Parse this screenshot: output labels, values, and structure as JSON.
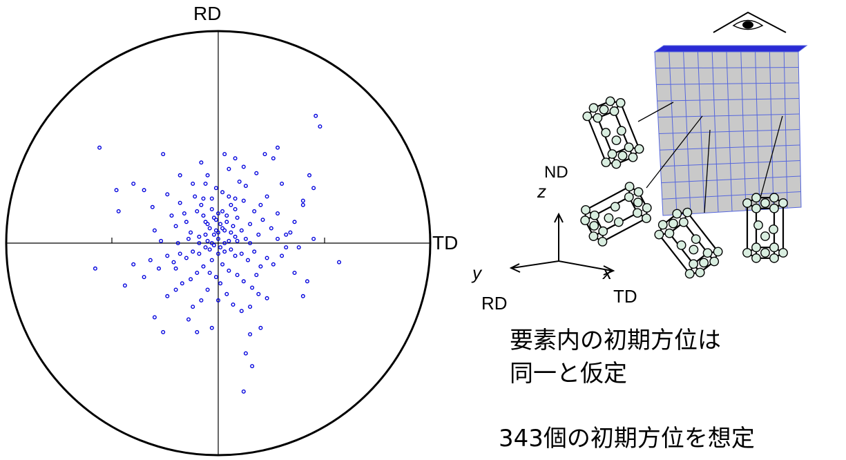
{
  "pole_figure": {
    "top_label": "RD",
    "right_label": "TD",
    "pole_color": "#0000dd",
    "poles": [
      [
        -0.35,
        0.25
      ],
      [
        -0.47,
        0.15
      ],
      [
        -0.31,
        0.17
      ],
      [
        -0.3,
        0.06
      ],
      [
        -0.22,
        0.13
      ],
      [
        -0.2,
        0.08
      ],
      [
        -0.18,
        0.19
      ],
      [
        -0.15,
        0.1
      ],
      [
        -0.13,
        0.05
      ],
      [
        -0.1,
        0.15
      ],
      [
        -0.09,
        0.03
      ],
      [
        -0.07,
        0.21
      ],
      [
        -0.06,
        0.1
      ],
      [
        -0.05,
        0.01
      ],
      [
        -0.04,
        0.07
      ],
      [
        -0.03,
        0.16
      ],
      [
        -0.02,
        0.04
      ],
      [
        -0.01,
        0.11
      ],
      [
        0.0,
        0.02
      ],
      [
        0.01,
        0.09
      ],
      [
        0.02,
        0.24
      ],
      [
        0.03,
        0.06
      ],
      [
        0.04,
        0.13
      ],
      [
        0.05,
        0.01
      ],
      [
        0.06,
        0.18
      ],
      [
        0.07,
        0.08
      ],
      [
        0.08,
        0.03
      ],
      [
        0.09,
        0.12
      ],
      [
        0.1,
        0.29
      ],
      [
        0.11,
        0.06
      ],
      [
        0.12,
        0.2
      ],
      [
        0.13,
        0.02
      ],
      [
        0.15,
        0.09
      ],
      [
        0.17,
        0.15
      ],
      [
        0.19,
        0.04
      ],
      [
        0.21,
        0.11
      ],
      [
        0.23,
        0.22
      ],
      [
        0.25,
        0.07
      ],
      [
        0.28,
        0.14
      ],
      [
        0.32,
        0.04
      ],
      [
        0.36,
        0.1
      ],
      [
        0.4,
        0.18
      ],
      [
        0.43,
        0.32
      ],
      [
        0.45,
        0.26
      ],
      [
        -0.27,
        0.01
      ],
      [
        -0.24,
        0.23
      ],
      [
        -0.12,
        0.28
      ],
      [
        -0.01,
        0.26
      ],
      [
        0.18,
        0.33
      ],
      [
        0.34,
        0.05
      ],
      [
        -0.02,
        -0.01
      ],
      [
        0.01,
        -0.02
      ],
      [
        -0.04,
        -0.03
      ],
      [
        0.03,
        -0.04
      ],
      [
        -0.06,
        -0.02
      ],
      [
        0.06,
        -0.03
      ],
      [
        -0.09,
        -0.05
      ],
      [
        0.08,
        -0.06
      ],
      [
        -0.12,
        -0.04
      ],
      [
        0.11,
        -0.05
      ],
      [
        -0.15,
        -0.07
      ],
      [
        0.14,
        -0.08
      ],
      [
        -0.18,
        -0.05
      ],
      [
        0.17,
        -0.04
      ],
      [
        -0.21,
        -0.09
      ],
      [
        0.2,
        -0.11
      ],
      [
        -0.24,
        -0.06
      ],
      [
        0.23,
        -0.07
      ],
      [
        -0.28,
        -0.12
      ],
      [
        0.26,
        -0.1
      ],
      [
        -0.32,
        -0.08
      ],
      [
        0.3,
        -0.06
      ],
      [
        -0.03,
        -0.08
      ],
      [
        0.02,
        -0.1
      ],
      [
        -0.07,
        -0.11
      ],
      [
        0.05,
        -0.13
      ],
      [
        -0.1,
        -0.14
      ],
      [
        0.09,
        -0.15
      ],
      [
        -0.13,
        -0.17
      ],
      [
        0.12,
        -0.18
      ],
      [
        -0.17,
        -0.19
      ],
      [
        0.16,
        -0.21
      ],
      [
        -0.2,
        -0.22
      ],
      [
        0.19,
        -0.24
      ],
      [
        -0.24,
        -0.25
      ],
      [
        0.23,
        -0.26
      ],
      [
        -0.01,
        -0.16
      ],
      [
        0.01,
        -0.19
      ],
      [
        -0.05,
        -0.22
      ],
      [
        0.04,
        -0.24
      ],
      [
        -0.08,
        -0.27
      ],
      [
        0.07,
        -0.29
      ],
      [
        -0.12,
        -0.3
      ],
      [
        0.11,
        -0.32
      ],
      [
        -0.35,
        -0.16
      ],
      [
        0.36,
        -0.14
      ],
      [
        -0.4,
        -0.1
      ],
      [
        0.42,
        -0.18
      ],
      [
        -0.58,
        -0.12
      ],
      [
        0.57,
        -0.09
      ],
      [
        -0.44,
        -0.2
      ],
      [
        0.4,
        -0.25
      ],
      [
        -0.03,
        -0.4
      ],
      [
        0.15,
        -0.43
      ],
      [
        0.2,
        -0.4
      ],
      [
        0.13,
        -0.52
      ],
      [
        0.16,
        -0.58
      ],
      [
        0.12,
        -0.7
      ],
      [
        -0.3,
        -0.35
      ],
      [
        -0.26,
        -0.42
      ],
      [
        -0.14,
        -0.36
      ],
      [
        -0.1,
        -0.42
      ],
      [
        0.0,
        -0.05
      ],
      [
        0.0,
        0.05
      ],
      [
        -0.03,
        0.0
      ],
      [
        0.03,
        0.0
      ],
      [
        -0.06,
        0.04
      ],
      [
        0.06,
        0.05
      ],
      [
        -0.09,
        0.0
      ],
      [
        0.09,
        0.01
      ],
      [
        -0.02,
        0.12
      ],
      [
        0.02,
        0.15
      ],
      [
        -0.08,
        0.18
      ],
      [
        0.08,
        0.21
      ],
      [
        0.05,
        0.35
      ],
      [
        0.08,
        0.4
      ],
      [
        0.03,
        0.42
      ],
      [
        -0.05,
        0.32
      ],
      [
        -0.08,
        0.38
      ],
      [
        0.12,
        0.36
      ],
      [
        0.22,
        0.42
      ],
      [
        0.26,
        0.4
      ],
      [
        0.28,
        0.45
      ],
      [
        -0.26,
        0.42
      ],
      [
        -0.18,
        0.32
      ],
      [
        0.3,
        0.28
      ],
      [
        0.46,
        0.6
      ],
      [
        0.48,
        0.55
      ],
      [
        -0.56,
        0.45
      ],
      [
        -0.48,
        0.25
      ],
      [
        -0.4,
        0.28
      ],
      [
        0.4,
        0.2
      ],
      [
        0.28,
        0.02
      ],
      [
        0.32,
        -0.02
      ],
      [
        0.38,
        -0.02
      ],
      [
        0.45,
        0.02
      ],
      [
        -0.14,
        0.02
      ],
      [
        -0.19,
        0.0
      ],
      [
        0.15,
        0.0
      ],
      [
        -0.04,
        -0.14
      ],
      [
        0.0,
        -0.27
      ],
      [
        0.15,
        -0.3
      ],
      [
        -0.2,
        -0.12
      ],
      [
        0.18,
        -0.15
      ],
      [
        -0.11,
        0.22
      ],
      [
        0.13,
        0.27
      ],
      [
        -0.06,
        0.28
      ],
      [
        0.05,
        0.22
      ],
      [
        -0.16,
        0.14
      ],
      [
        0.2,
        0.18
      ],
      [
        -0.01,
        0.06
      ],
      [
        0.02,
        0.07
      ],
      [
        -0.05,
        0.09
      ],
      [
        0.04,
        0.1
      ],
      [
        0.0,
        0.14
      ],
      [
        -0.07,
        0.13
      ],
      [
        0.08,
        0.16
      ],
      [
        -0.03,
        0.21
      ]
    ]
  },
  "cube": {
    "face_color": "#c9c9c9",
    "top_color": "#2a2ad4",
    "grid_color": "#5566dd"
  },
  "axes": {
    "nd_label": "ND",
    "z_label": "z",
    "y_label": "y",
    "rd_label": "RD",
    "x_label": "x",
    "td_label": "TD"
  },
  "captions": {
    "line1": "要素内の初期方位は",
    "line2": "同一と仮定",
    "line3": "343個の初期方位を想定"
  }
}
